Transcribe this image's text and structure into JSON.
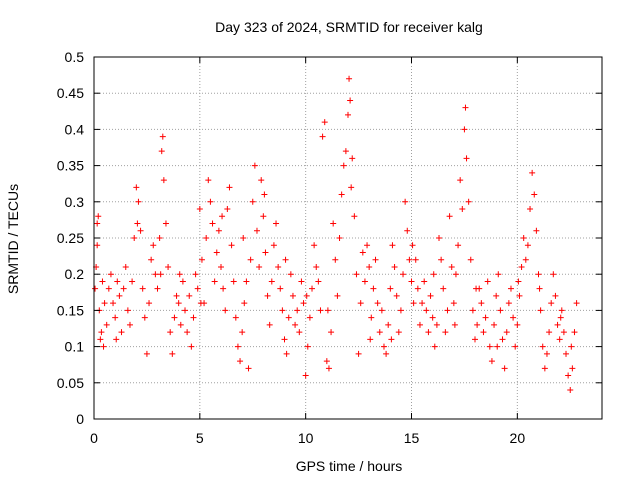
{
  "chart_data": {
    "type": "scatter",
    "title": "Day 323 of 2024, SRMTID for receiver kalg",
    "xlabel": "GPS time / hours",
    "ylabel": "SRMTID / TECUs",
    "xlim": [
      0,
      24
    ],
    "ylim": [
      0,
      0.5
    ],
    "xticks": [
      0,
      5,
      10,
      15,
      20
    ],
    "xtick_labels": [
      "0",
      "5",
      "10",
      "15",
      "20"
    ],
    "yticks": [
      0,
      0.05,
      0.1,
      0.15,
      0.2,
      0.25,
      0.3,
      0.35,
      0.4,
      0.45,
      0.5
    ],
    "ytick_labels": [
      "0",
      "0.05",
      "0.1",
      "0.15",
      "0.2",
      "0.25",
      "0.3",
      "0.35",
      "0.4",
      "0.45",
      "0.5"
    ],
    "grid": true,
    "marker": "+",
    "color": "#ff0000",
    "series": [
      {
        "name": "SRMTID",
        "points": [
          [
            0.05,
            0.18
          ],
          [
            0.1,
            0.21
          ],
          [
            0.15,
            0.27
          ],
          [
            0.2,
            0.28
          ],
          [
            0.25,
            0.15
          ],
          [
            0.3,
            0.11
          ],
          [
            0.35,
            0.12
          ],
          [
            0.4,
            0.19
          ],
          [
            0.5,
            0.16
          ],
          [
            0.6,
            0.13
          ],
          [
            0.7,
            0.18
          ],
          [
            0.8,
            0.2
          ],
          [
            0.9,
            0.16
          ],
          [
            1.0,
            0.14
          ],
          [
            1.1,
            0.19
          ],
          [
            1.2,
            0.17
          ],
          [
            1.3,
            0.12
          ],
          [
            1.4,
            0.18
          ],
          [
            1.5,
            0.21
          ],
          [
            1.6,
            0.15
          ],
          [
            1.7,
            0.13
          ],
          [
            1.8,
            0.19
          ],
          [
            1.9,
            0.25
          ],
          [
            2.0,
            0.32
          ],
          [
            2.1,
            0.3
          ],
          [
            2.2,
            0.26
          ],
          [
            2.3,
            0.18
          ],
          [
            2.4,
            0.14
          ],
          [
            2.5,
            0.09
          ],
          [
            2.6,
            0.16
          ],
          [
            2.7,
            0.22
          ],
          [
            2.8,
            0.24
          ],
          [
            2.9,
            0.2
          ],
          [
            3.0,
            0.18
          ],
          [
            3.1,
            0.25
          ],
          [
            3.2,
            0.37
          ],
          [
            3.25,
            0.39
          ],
          [
            3.3,
            0.33
          ],
          [
            3.4,
            0.27
          ],
          [
            3.5,
            0.21
          ],
          [
            3.6,
            0.12
          ],
          [
            3.7,
            0.09
          ],
          [
            3.8,
            0.14
          ],
          [
            3.9,
            0.17
          ],
          [
            4.0,
            0.16
          ],
          [
            4.1,
            0.13
          ],
          [
            4.2,
            0.19
          ],
          [
            4.3,
            0.15
          ],
          [
            4.4,
            0.12
          ],
          [
            4.5,
            0.17
          ],
          [
            4.6,
            0.1
          ],
          [
            4.7,
            0.14
          ],
          [
            4.8,
            0.2
          ],
          [
            4.9,
            0.18
          ],
          [
            5.0,
            0.29
          ],
          [
            5.1,
            0.22
          ],
          [
            5.2,
            0.16
          ],
          [
            5.3,
            0.25
          ],
          [
            5.4,
            0.33
          ],
          [
            5.5,
            0.3
          ],
          [
            5.6,
            0.27
          ],
          [
            5.7,
            0.19
          ],
          [
            5.8,
            0.23
          ],
          [
            5.9,
            0.26
          ],
          [
            6.0,
            0.21
          ],
          [
            6.1,
            0.18
          ],
          [
            6.2,
            0.15
          ],
          [
            6.3,
            0.29
          ],
          [
            6.4,
            0.32
          ],
          [
            6.5,
            0.24
          ],
          [
            6.6,
            0.19
          ],
          [
            6.7,
            0.14
          ],
          [
            6.8,
            0.1
          ],
          [
            6.9,
            0.08
          ],
          [
            7.0,
            0.12
          ],
          [
            7.1,
            0.16
          ],
          [
            7.2,
            0.19
          ],
          [
            7.3,
            0.07
          ],
          [
            7.4,
            0.22
          ],
          [
            7.5,
            0.3
          ],
          [
            7.6,
            0.35
          ],
          [
            7.7,
            0.26
          ],
          [
            7.8,
            0.21
          ],
          [
            7.9,
            0.33
          ],
          [
            8.0,
            0.28
          ],
          [
            8.1,
            0.23
          ],
          [
            8.2,
            0.17
          ],
          [
            8.3,
            0.13
          ],
          [
            8.4,
            0.19
          ],
          [
            8.5,
            0.24
          ],
          [
            8.6,
            0.27
          ],
          [
            8.7,
            0.21
          ],
          [
            8.8,
            0.18
          ],
          [
            8.9,
            0.15
          ],
          [
            9.0,
            0.11
          ],
          [
            9.1,
            0.09
          ],
          [
            9.2,
            0.14
          ],
          [
            9.3,
            0.2
          ],
          [
            9.4,
            0.17
          ],
          [
            9.5,
            0.13
          ],
          [
            9.6,
            0.15
          ],
          [
            9.7,
            0.12
          ],
          [
            9.8,
            0.19
          ],
          [
            9.9,
            0.16
          ],
          [
            10.0,
            0.06
          ],
          [
            10.1,
            0.1
          ],
          [
            10.2,
            0.14
          ],
          [
            10.3,
            0.18
          ],
          [
            10.4,
            0.24
          ],
          [
            10.5,
            0.21
          ],
          [
            10.6,
            0.19
          ],
          [
            10.7,
            0.15
          ],
          [
            10.8,
            0.39
          ],
          [
            10.9,
            0.41
          ],
          [
            11.0,
            0.08
          ],
          [
            11.1,
            0.07
          ],
          [
            11.2,
            0.12
          ],
          [
            11.3,
            0.27
          ],
          [
            11.4,
            0.22
          ],
          [
            11.5,
            0.17
          ],
          [
            11.6,
            0.25
          ],
          [
            11.7,
            0.31
          ],
          [
            11.8,
            0.35
          ],
          [
            11.9,
            0.37
          ],
          [
            12.0,
            0.42
          ],
          [
            12.05,
            0.47
          ],
          [
            12.1,
            0.44
          ],
          [
            12.2,
            0.36
          ],
          [
            12.3,
            0.28
          ],
          [
            12.4,
            0.2
          ],
          [
            12.5,
            0.09
          ],
          [
            12.6,
            0.16
          ],
          [
            12.7,
            0.23
          ],
          [
            12.8,
            0.19
          ],
          [
            12.9,
            0.24
          ],
          [
            13.0,
            0.21
          ],
          [
            13.1,
            0.14
          ],
          [
            13.2,
            0.18
          ],
          [
            13.3,
            0.22
          ],
          [
            13.4,
            0.16
          ],
          [
            13.5,
            0.12
          ],
          [
            13.6,
            0.15
          ],
          [
            13.7,
            0.1
          ],
          [
            13.8,
            0.09
          ],
          [
            13.9,
            0.13
          ],
          [
            14.0,
            0.18
          ],
          [
            14.1,
            0.24
          ],
          [
            14.2,
            0.21
          ],
          [
            14.3,
            0.17
          ],
          [
            14.4,
            0.12
          ],
          [
            14.5,
            0.15
          ],
          [
            14.6,
            0.2
          ],
          [
            14.7,
            0.3
          ],
          [
            14.8,
            0.26
          ],
          [
            14.9,
            0.22
          ],
          [
            15.0,
            0.19
          ],
          [
            15.1,
            0.16
          ],
          [
            15.2,
            0.22
          ],
          [
            15.3,
            0.18
          ],
          [
            15.4,
            0.13
          ],
          [
            15.5,
            0.16
          ],
          [
            15.6,
            0.19
          ],
          [
            15.7,
            0.15
          ],
          [
            15.8,
            0.12
          ],
          [
            15.9,
            0.17
          ],
          [
            16.0,
            0.14
          ],
          [
            16.1,
            0.1
          ],
          [
            16.2,
            0.13
          ],
          [
            16.3,
            0.25
          ],
          [
            16.4,
            0.22
          ],
          [
            16.5,
            0.18
          ],
          [
            16.6,
            0.12
          ],
          [
            16.7,
            0.15
          ],
          [
            16.8,
            0.28
          ],
          [
            16.9,
            0.21
          ],
          [
            17.0,
            0.16
          ],
          [
            17.1,
            0.2
          ],
          [
            17.2,
            0.24
          ],
          [
            17.3,
            0.33
          ],
          [
            17.4,
            0.29
          ],
          [
            17.5,
            0.4
          ],
          [
            17.55,
            0.43
          ],
          [
            17.6,
            0.36
          ],
          [
            17.7,
            0.3
          ],
          [
            17.8,
            0.22
          ],
          [
            17.9,
            0.15
          ],
          [
            18.0,
            0.11
          ],
          [
            18.1,
            0.13
          ],
          [
            18.2,
            0.18
          ],
          [
            18.3,
            0.16
          ],
          [
            18.4,
            0.12
          ],
          [
            18.5,
            0.14
          ],
          [
            18.6,
            0.19
          ],
          [
            18.7,
            0.1
          ],
          [
            18.8,
            0.08
          ],
          [
            18.9,
            0.13
          ],
          [
            19.0,
            0.17
          ],
          [
            19.1,
            0.2
          ],
          [
            19.2,
            0.15
          ],
          [
            19.3,
            0.11
          ],
          [
            19.4,
            0.07
          ],
          [
            19.5,
            0.12
          ],
          [
            19.6,
            0.16
          ],
          [
            19.7,
            0.18
          ],
          [
            19.8,
            0.14
          ],
          [
            19.9,
            0.1
          ],
          [
            20.0,
            0.13
          ],
          [
            20.1,
            0.17
          ],
          [
            20.2,
            0.21
          ],
          [
            20.3,
            0.25
          ],
          [
            20.4,
            0.22
          ],
          [
            20.5,
            0.24
          ],
          [
            20.6,
            0.29
          ],
          [
            20.7,
            0.34
          ],
          [
            20.8,
            0.31
          ],
          [
            20.9,
            0.26
          ],
          [
            21.0,
            0.2
          ],
          [
            21.1,
            0.15
          ],
          [
            21.2,
            0.1
          ],
          [
            21.3,
            0.07
          ],
          [
            21.4,
            0.09
          ],
          [
            21.5,
            0.12
          ],
          [
            21.6,
            0.16
          ],
          [
            21.7,
            0.2
          ],
          [
            21.8,
            0.17
          ],
          [
            21.9,
            0.13
          ],
          [
            22.0,
            0.11
          ],
          [
            22.1,
            0.15
          ],
          [
            22.2,
            0.12
          ],
          [
            22.3,
            0.09
          ],
          [
            22.4,
            0.06
          ],
          [
            22.5,
            0.04
          ],
          [
            22.6,
            0.07
          ],
          [
            22.7,
            0.12
          ],
          [
            22.8,
            0.16
          ],
          [
            0.15,
            0.24
          ],
          [
            0.45,
            0.1
          ],
          [
            1.05,
            0.11
          ],
          [
            2.05,
            0.27
          ],
          [
            3.15,
            0.2
          ],
          [
            4.05,
            0.2
          ],
          [
            5.05,
            0.16
          ],
          [
            6.05,
            0.28
          ],
          [
            7.05,
            0.25
          ],
          [
            8.05,
            0.31
          ],
          [
            9.05,
            0.22
          ],
          [
            10.05,
            0.17
          ],
          [
            11.05,
            0.15
          ],
          [
            12.15,
            0.32
          ],
          [
            13.05,
            0.11
          ],
          [
            14.05,
            0.11
          ],
          [
            15.05,
            0.24
          ],
          [
            16.05,
            0.2
          ],
          [
            17.05,
            0.13
          ],
          [
            18.05,
            0.18
          ],
          [
            19.05,
            0.1
          ],
          [
            20.05,
            0.19
          ],
          [
            21.05,
            0.18
          ],
          [
            22.05,
            0.14
          ],
          [
            22.55,
            0.1
          ]
        ]
      }
    ]
  }
}
